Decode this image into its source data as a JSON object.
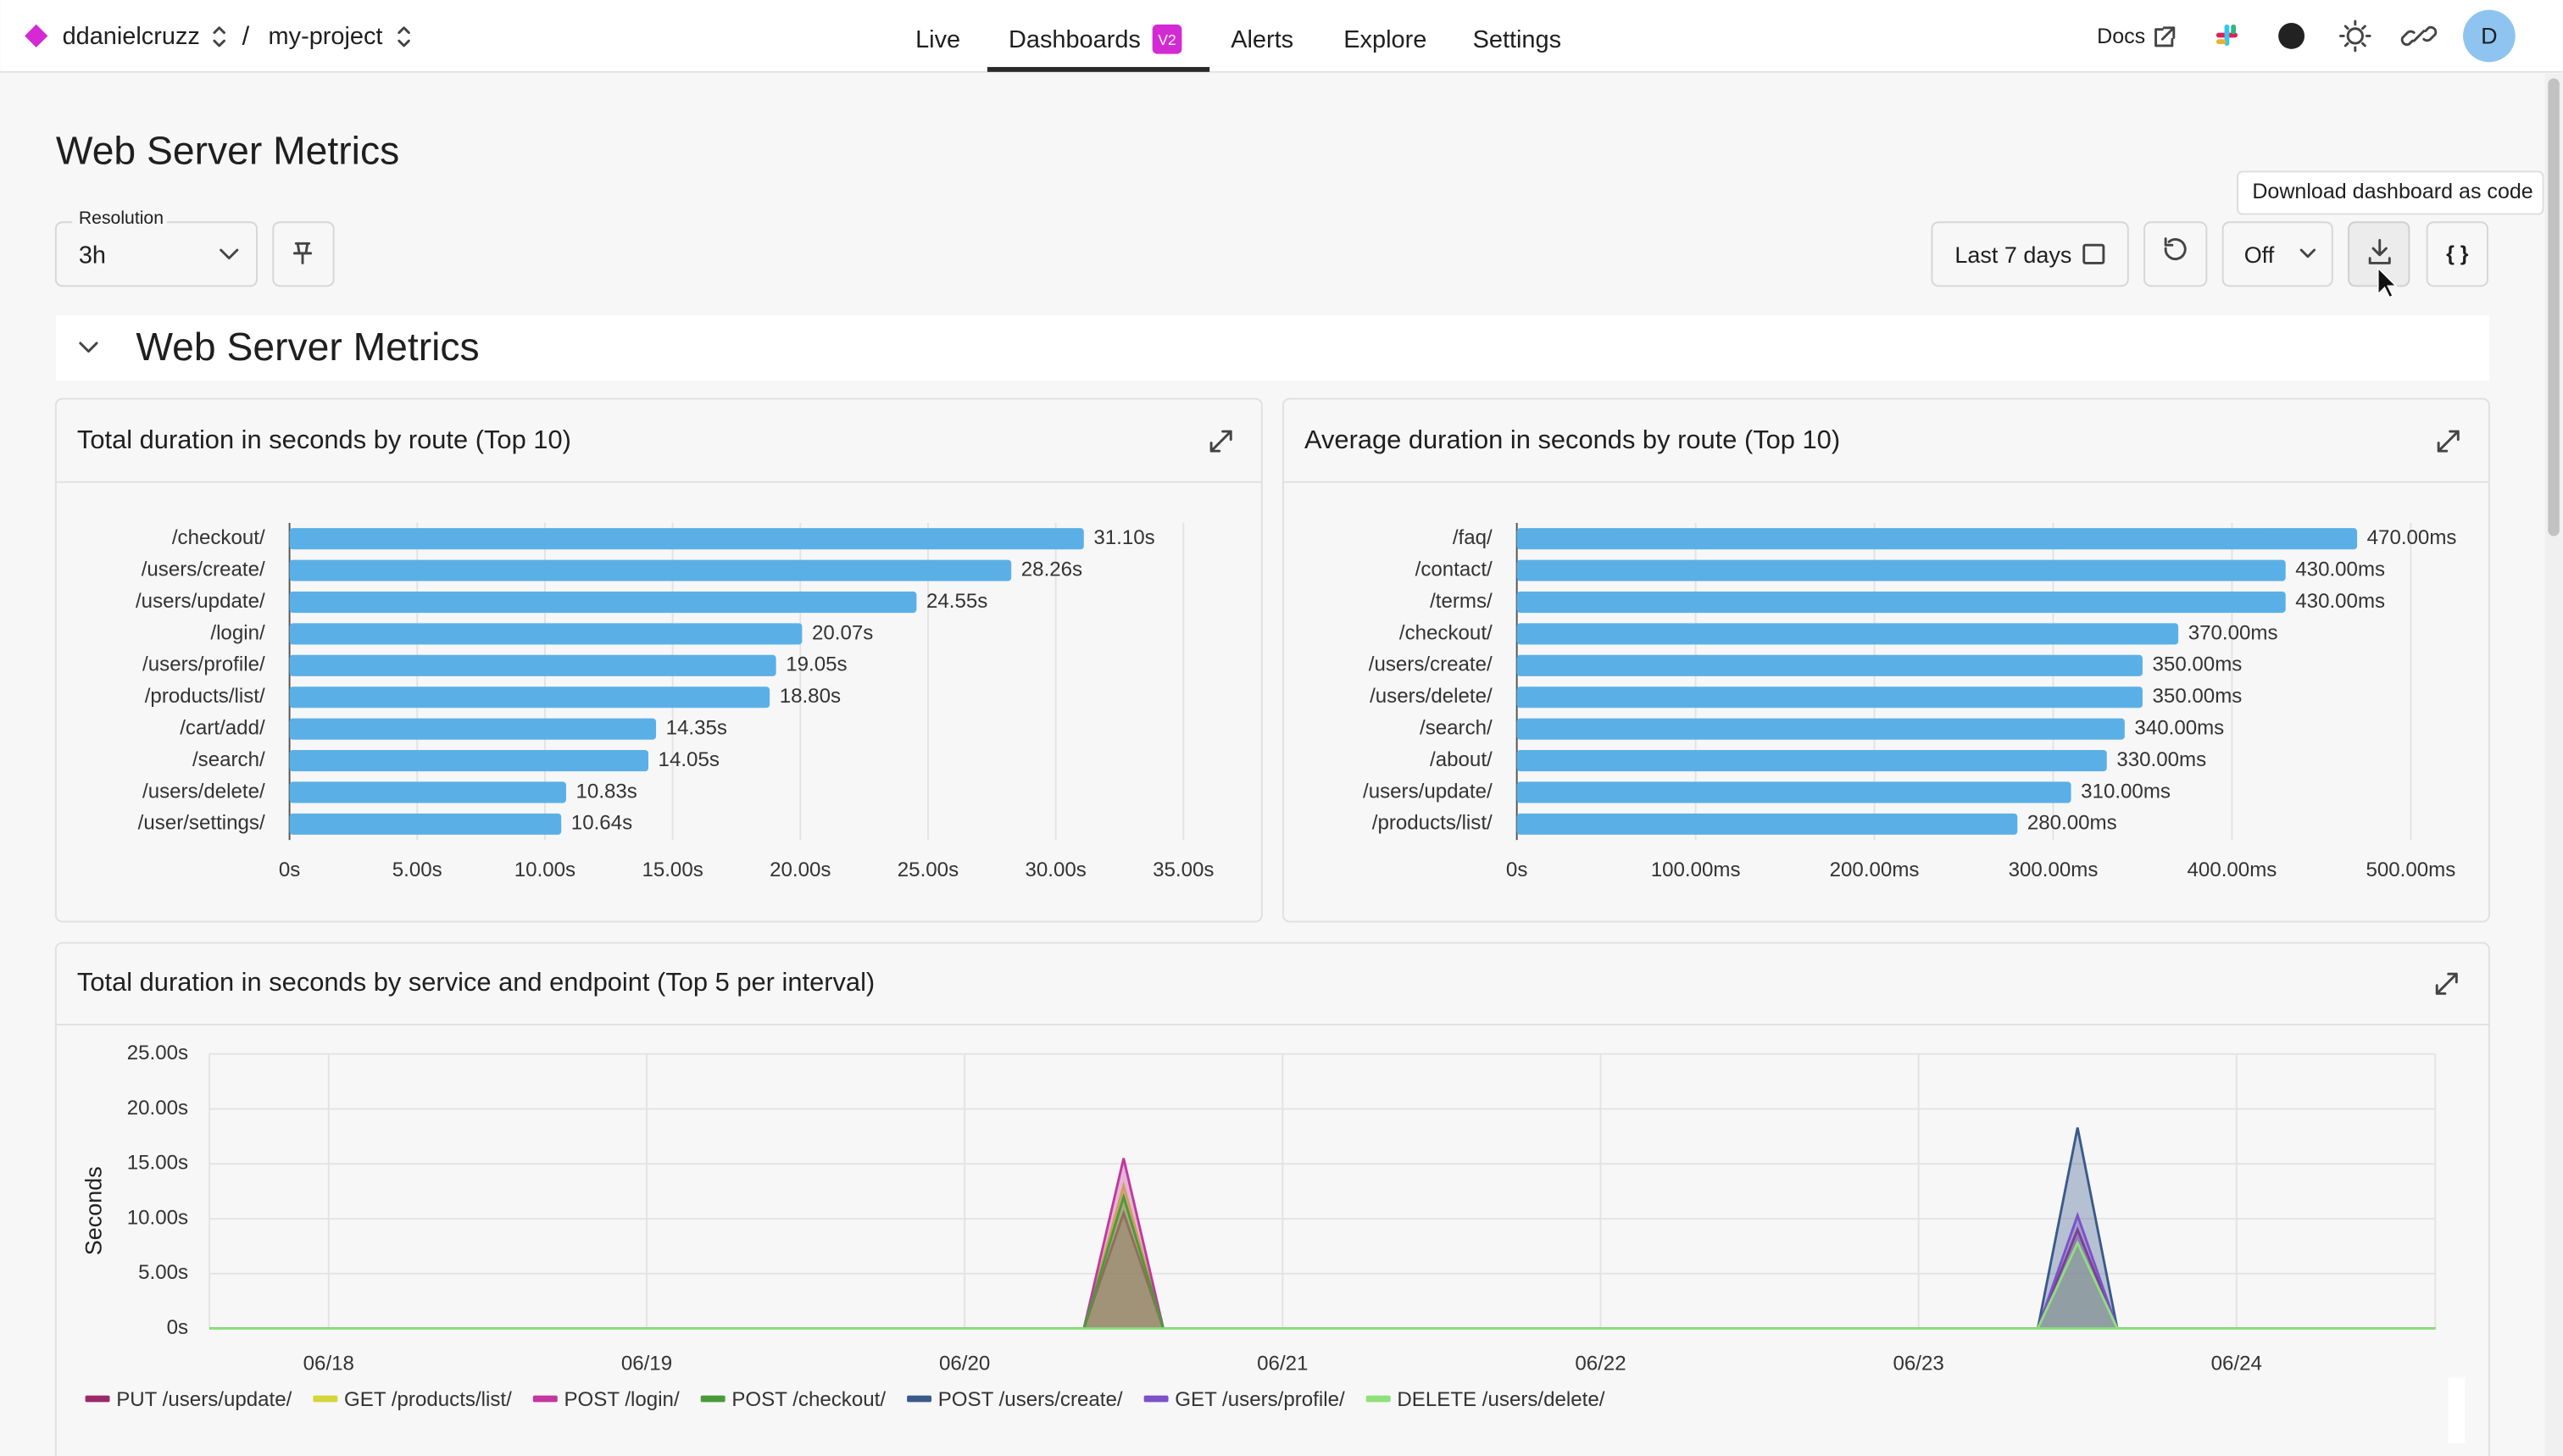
{
  "nav": {
    "org": "ddanielcruzz",
    "separator": "/",
    "project": "my-project",
    "tabs": [
      "Live",
      "Dashboards",
      "Alerts",
      "Explore",
      "Settings"
    ],
    "badge": "V2",
    "docs": "Docs",
    "avatar": "D"
  },
  "page": {
    "title": "Web Server Metrics",
    "resolution_label": "Resolution",
    "resolution": "3h",
    "time_range": "Last 7 days",
    "refresh": "Off",
    "tooltip": "Download dashboard as code",
    "code_button": "{ }",
    "section": "Web Server Metrics"
  },
  "chart_data": [
    {
      "type": "bar",
      "orientation": "horizontal",
      "title": "Total duration in seconds by route (Top 10)",
      "color": "#5ab0e6",
      "grid": true,
      "categories": [
        "/checkout/",
        "/users/create/",
        "/users/update/",
        "/login/",
        "/users/profile/",
        "/products/list/",
        "/cart/add/",
        "/search/",
        "/users/delete/",
        "/user/settings/"
      ],
      "values": [
        31.1,
        28.26,
        24.55,
        20.07,
        19.05,
        18.8,
        14.35,
        14.05,
        10.83,
        10.64
      ],
      "value_labels": [
        "31.10s",
        "28.26s",
        "24.55s",
        "20.07s",
        "19.05s",
        "18.80s",
        "14.35s",
        "14.05s",
        "10.83s",
        "10.64s"
      ],
      "xlim": [
        0,
        35
      ],
      "xticks": [
        {
          "value": 0,
          "label": "0s"
        },
        {
          "value": 5,
          "label": "5.00s"
        },
        {
          "value": 10,
          "label": "10.00s"
        },
        {
          "value": 15,
          "label": "15.00s"
        },
        {
          "value": 20,
          "label": "20.00s"
        },
        {
          "value": 25,
          "label": "25.00s"
        },
        {
          "value": 30,
          "label": "30.00s"
        },
        {
          "value": 35,
          "label": "35.00s"
        }
      ]
    },
    {
      "type": "bar",
      "orientation": "horizontal",
      "title": "Average duration in seconds by route (Top 10)",
      "color": "#5ab0e6",
      "grid": true,
      "categories": [
        "/faq/",
        "/contact/",
        "/terms/",
        "/checkout/",
        "/users/create/",
        "/users/delete/",
        "/search/",
        "/about/",
        "/users/update/",
        "/products/list/"
      ],
      "values": [
        470,
        430,
        430,
        370,
        350,
        350,
        340,
        330,
        310,
        280
      ],
      "value_labels": [
        "470.00ms",
        "430.00ms",
        "430.00ms",
        "370.00ms",
        "350.00ms",
        "350.00ms",
        "340.00ms",
        "330.00ms",
        "310.00ms",
        "280.00ms"
      ],
      "xlim": [
        0,
        500
      ],
      "xticks": [
        {
          "value": 0,
          "label": "0s"
        },
        {
          "value": 100,
          "label": "100.00ms"
        },
        {
          "value": 200,
          "label": "200.00ms"
        },
        {
          "value": 300,
          "label": "300.00ms"
        },
        {
          "value": 400,
          "label": "400.00ms"
        },
        {
          "value": 500,
          "label": "500.00ms"
        }
      ]
    },
    {
      "type": "area",
      "title": "Total duration in seconds by service and endpoint (Top 5 per interval)",
      "y_label": "Seconds",
      "grid": true,
      "categories": [
        null,
        null,
        null,
        "06/18",
        null,
        null,
        null,
        null,
        null,
        null,
        null,
        "06/19",
        null,
        null,
        null,
        null,
        null,
        null,
        null,
        "06/20",
        null,
        null,
        null,
        null,
        null,
        null,
        null,
        "06/21",
        null,
        null,
        null,
        null,
        null,
        null,
        null,
        "06/22",
        null,
        null,
        null,
        null,
        null,
        null,
        null,
        "06/23",
        null,
        null,
        null,
        null,
        null,
        null,
        null,
        "06/24",
        null,
        null,
        null,
        null,
        null
      ],
      "ylim": [
        0,
        25
      ],
      "yticks": [
        {
          "value": 0,
          "label": "0s"
        },
        {
          "value": 5,
          "label": "5.00s"
        },
        {
          "value": 10,
          "label": "10.00s"
        },
        {
          "value": 15,
          "label": "15.00s"
        },
        {
          "value": 20,
          "label": "20.00s"
        },
        {
          "value": 25,
          "label": "25.00s"
        }
      ],
      "series": [
        {
          "name": "PUT /users/update/",
          "color": "#9c2a6a",
          "values": [
            0,
            0,
            0,
            0,
            0,
            0,
            0,
            0,
            0,
            0,
            0,
            0,
            0,
            0,
            0,
            0,
            0,
            0,
            0,
            0,
            0,
            0,
            0,
            10.5,
            0,
            0,
            0,
            0,
            0,
            0,
            0,
            0,
            0,
            0,
            0,
            0,
            0,
            0,
            0,
            0,
            0,
            0,
            0,
            0,
            0,
            0,
            0,
            9.0,
            0,
            0,
            0,
            0,
            0,
            0,
            0,
            0,
            0
          ]
        },
        {
          "name": "GET /products/list/",
          "color": "#d4d63a",
          "values": [
            0,
            0,
            0,
            0,
            0,
            0,
            0,
            0,
            0,
            0,
            0,
            0,
            0,
            0,
            0,
            0,
            0,
            0,
            0,
            0,
            0,
            0,
            0,
            13.0,
            0,
            0,
            0,
            0,
            0,
            0,
            0,
            0,
            0,
            0,
            0,
            0,
            0,
            0,
            0,
            0,
            0,
            0,
            0,
            0,
            0,
            0,
            0,
            0,
            0,
            0,
            0,
            0,
            0,
            0,
            0,
            0,
            0
          ]
        },
        {
          "name": "POST /login/",
          "color": "#c2389e",
          "values": [
            0,
            0,
            0,
            0,
            0,
            0,
            0,
            0,
            0,
            0,
            0,
            0,
            0,
            0,
            0,
            0,
            0,
            0,
            0,
            0,
            0,
            0,
            0,
            15.5,
            0,
            0,
            0,
            0,
            0,
            0,
            0,
            0,
            0,
            0,
            0,
            0,
            0,
            0,
            0,
            0,
            0,
            0,
            0,
            0,
            0,
            0,
            0,
            0,
            0,
            0,
            0,
            0,
            0,
            0,
            0,
            0,
            0
          ]
        },
        {
          "name": "POST /checkout/",
          "color": "#4a9a3a",
          "values": [
            0,
            0,
            0,
            0,
            0,
            0,
            0,
            0,
            0,
            0,
            0,
            0,
            0,
            0,
            0,
            0,
            0,
            0,
            0,
            0,
            0,
            0,
            0,
            12.0,
            0,
            0,
            0,
            0,
            0,
            0,
            0,
            0,
            0,
            0,
            0,
            0,
            0,
            0,
            0,
            0,
            0,
            0,
            0,
            0,
            0,
            0,
            0,
            0,
            0,
            0,
            0,
            0,
            0,
            0,
            0,
            0,
            0
          ]
        },
        {
          "name": "POST /users/create/",
          "color": "#3a5a8c",
          "values": [
            0,
            0,
            0,
            0,
            0,
            0,
            0,
            0,
            0,
            0,
            0,
            0,
            0,
            0,
            0,
            0,
            0,
            0,
            0,
            0,
            0,
            0,
            0,
            0,
            0,
            0,
            0,
            0,
            0,
            0,
            0,
            0,
            0,
            0,
            0,
            0,
            0,
            0,
            0,
            0,
            0,
            0,
            0,
            0,
            0,
            0,
            0,
            18.3,
            0,
            0,
            0,
            0,
            0,
            0,
            0,
            0,
            0
          ]
        },
        {
          "name": "GET /users/profile/",
          "color": "#7b52c9",
          "values": [
            0,
            0,
            0,
            0,
            0,
            0,
            0,
            0,
            0,
            0,
            0,
            0,
            0,
            0,
            0,
            0,
            0,
            0,
            0,
            0,
            0,
            0,
            0,
            0,
            0,
            0,
            0,
            0,
            0,
            0,
            0,
            0,
            0,
            0,
            0,
            0,
            0,
            0,
            0,
            0,
            0,
            0,
            0,
            0,
            0,
            0,
            0,
            10.3,
            0,
            0,
            0,
            0,
            0,
            0,
            0,
            0,
            0
          ]
        },
        {
          "name": "DELETE /users/delete/",
          "color": "#8fe07a",
          "values": [
            0,
            0,
            0,
            0,
            0,
            0,
            0,
            0,
            0,
            0,
            0,
            0,
            0,
            0,
            0,
            0,
            0,
            0,
            0,
            0,
            0,
            0,
            0,
            0,
            0,
            0,
            0,
            0,
            0,
            0,
            0,
            0,
            0,
            0,
            0,
            0,
            0,
            0,
            0,
            0,
            0,
            0,
            0,
            0,
            0,
            0,
            0,
            7.8,
            0,
            0,
            0,
            0,
            0,
            0,
            0,
            0,
            0
          ]
        }
      ]
    }
  ]
}
